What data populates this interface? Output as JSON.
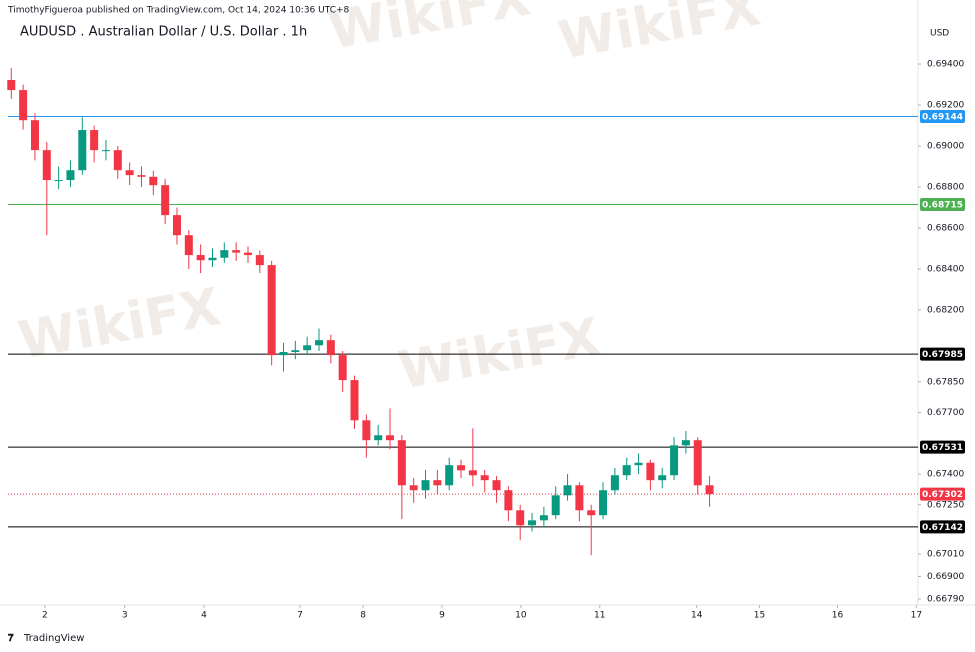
{
  "chart_data": {
    "type": "candlestick",
    "header": "TimothyFigueroa published on TradingView.com, Oct 14, 2024 10:36 UTC+8",
    "title": "AUDUSD . Australian Dollar / U.S. Dollar . 1h",
    "currency": "USD",
    "brand": "TradingView",
    "watermark": "WikiFX",
    "up_color": "#089981",
    "down_color": "#f23645",
    "x": [
      1,
      4.6,
      8.2,
      11.8,
      15.4,
      19,
      22.6,
      26.2,
      29.8,
      33.4,
      37,
      40.6,
      44.2,
      47.8,
      51.4,
      55,
      58.6,
      62.2,
      65.8,
      69.4,
      73,
      76.6,
      80.2,
      83.8,
      87.4,
      91,
      94.6,
      98.2,
      101.8,
      105.4,
      109,
      112.6,
      116.2,
      119.8,
      123.4,
      127,
      130.6,
      134.2,
      137.8,
      141.4,
      145,
      148.6,
      152.2,
      155.8,
      159.4,
      163,
      166.6,
      170.2,
      173.8,
      177.4,
      181,
      184.6,
      188.2,
      191.8,
      195.4,
      199,
      202.6,
      206.2,
      209.8,
      213.4
    ],
    "open": [
      0.69322,
      0.69273,
      0.69126,
      0.6898,
      0.68834,
      0.68834,
      0.68882,
      0.69078,
      0.6898,
      0.6898,
      0.68882,
      0.68858,
      0.6885,
      0.68809,
      0.68663,
      0.68565,
      0.68468,
      0.68443,
      0.68455,
      0.68492,
      0.6848,
      0.68468,
      0.68419,
      0.6798,
      0.67995,
      0.68004,
      0.68028,
      0.68053,
      0.6798,
      0.67858,
      0.67662,
      0.67565,
      0.67589,
      0.67565,
      0.67345,
      0.67321,
      0.6737,
      0.67345,
      0.67443,
      0.67418,
      0.67394,
      0.6737,
      0.67321,
      0.67223,
      0.6715,
      0.67174,
      0.67199,
      0.67296,
      0.67345,
      0.67223,
      0.67199,
      0.67321,
      0.67394,
      0.67443,
      0.67455,
      0.6737,
      0.67394,
      0.6754,
      0.67565,
      0.67345
    ],
    "high": [
      0.6938,
      0.693,
      0.6916,
      0.6902,
      0.689,
      0.6893,
      0.69141,
      0.691,
      0.6903,
      0.69,
      0.6892,
      0.689,
      0.6888,
      0.6884,
      0.687,
      0.6859,
      0.6852,
      0.685,
      0.6853,
      0.6853,
      0.6851,
      0.6849,
      0.6844,
      0.6804,
      0.6805,
      0.6807,
      0.6811,
      0.6808,
      0.68,
      0.6788,
      0.6769,
      0.6764,
      0.6772,
      0.6759,
      0.6738,
      0.6742,
      0.6742,
      0.6748,
      0.6747,
      0.67623,
      0.6742,
      0.6739,
      0.6734,
      0.6725,
      0.6721,
      0.6724,
      0.6734,
      0.674,
      0.6736,
      0.6725,
      0.6736,
      0.6743,
      0.6748,
      0.675,
      0.6747,
      0.6743,
      0.6758,
      0.6761,
      0.6758,
      0.6739
    ],
    "low": [
      0.6923,
      0.6908,
      0.6893,
      0.68565,
      0.6879,
      0.688,
      0.6886,
      0.6892,
      0.6893,
      0.6884,
      0.6881,
      0.688,
      0.6876,
      0.6862,
      0.6852,
      0.684,
      0.6838,
      0.6841,
      0.6843,
      0.6844,
      0.6843,
      0.6838,
      0.6793,
      0.679,
      0.6796,
      0.6798,
      0.68,
      0.6794,
      0.678,
      0.6762,
      0.6748,
      0.6754,
      0.6752,
      0.6718,
      0.6726,
      0.6728,
      0.673,
      0.6732,
      0.6738,
      0.6734,
      0.6731,
      0.6726,
      0.6717,
      0.67077,
      0.6712,
      0.6714,
      0.6718,
      0.6727,
      0.6717,
      0.67004,
      0.6718,
      0.673,
      0.6737,
      0.674,
      0.6732,
      0.6733,
      0.6737,
      0.675,
      0.673,
      0.6724
    ],
    "close": [
      0.69273,
      0.69126,
      0.6898,
      0.68834,
      0.68834,
      0.68882,
      0.69078,
      0.6898,
      0.6898,
      0.68882,
      0.68858,
      0.6885,
      0.68809,
      0.68663,
      0.68565,
      0.68468,
      0.68443,
      0.68455,
      0.68492,
      0.6848,
      0.68468,
      0.68419,
      0.6798,
      0.67995,
      0.68004,
      0.68028,
      0.68053,
      0.6798,
      0.67858,
      0.67662,
      0.67565,
      0.67589,
      0.67565,
      0.67345,
      0.67321,
      0.6737,
      0.67345,
      0.67443,
      0.67418,
      0.67394,
      0.6737,
      0.67321,
      0.67223,
      0.6715,
      0.67174,
      0.67199,
      0.67296,
      0.67345,
      0.67223,
      0.67199,
      0.67321,
      0.67394,
      0.67443,
      0.67455,
      0.6737,
      0.67394,
      0.6754,
      0.67565,
      0.67345,
      0.67302
    ],
    "xlim": [
      0,
      276.8
    ],
    "xticks": [
      {
        "value": 11.2,
        "label": "2"
      },
      {
        "value": 35.5,
        "label": "3"
      },
      {
        "value": 59.6,
        "label": "4"
      },
      {
        "value": 88.8,
        "label": "7"
      },
      {
        "value": 108,
        "label": "8"
      },
      {
        "value": 132,
        "label": "9"
      },
      {
        "value": 156,
        "label": "10"
      },
      {
        "value": 180,
        "label": "11"
      },
      {
        "value": 209.5,
        "label": "14"
      },
      {
        "value": 228.6,
        "label": "15"
      },
      {
        "value": 252.3,
        "label": "16"
      },
      {
        "value": 276.3,
        "label": "17"
      }
    ],
    "ylim": [
      0.66761,
      0.69688
    ],
    "yticks": [
      {
        "value": 0.694,
        "label": "0.69400"
      },
      {
        "value": 0.692,
        "label": "0.69200"
      },
      {
        "value": 0.69,
        "label": "0.69000"
      },
      {
        "value": 0.688,
        "label": "0.68800"
      },
      {
        "value": 0.686,
        "label": "0.68600"
      },
      {
        "value": 0.684,
        "label": "0.68400"
      },
      {
        "value": 0.682,
        "label": "0.68200"
      },
      {
        "value": 0.6785,
        "label": "0.67850"
      },
      {
        "value": 0.677,
        "label": "0.67700"
      },
      {
        "value": 0.674,
        "label": "0.67400"
      },
      {
        "value": 0.6725,
        "label": "0.67250"
      },
      {
        "value": 0.6701,
        "label": "0.67010"
      },
      {
        "value": 0.669,
        "label": "0.66900"
      },
      {
        "value": 0.6679,
        "label": "0.66790"
      }
    ],
    "levels": [
      {
        "value": 0.69144,
        "color": "#2196f3",
        "style": "solid"
      },
      {
        "value": 0.68715,
        "color": "#4caf50",
        "style": "solid"
      },
      {
        "value": 0.67985,
        "color": "#000000",
        "style": "solid"
      },
      {
        "value": 0.67531,
        "color": "#000000",
        "style": "solid"
      },
      {
        "value": 0.67142,
        "color": "#000000",
        "style": "solid"
      },
      {
        "value": 0.67302,
        "color": "#f23645",
        "style": "dotted"
      }
    ]
  }
}
